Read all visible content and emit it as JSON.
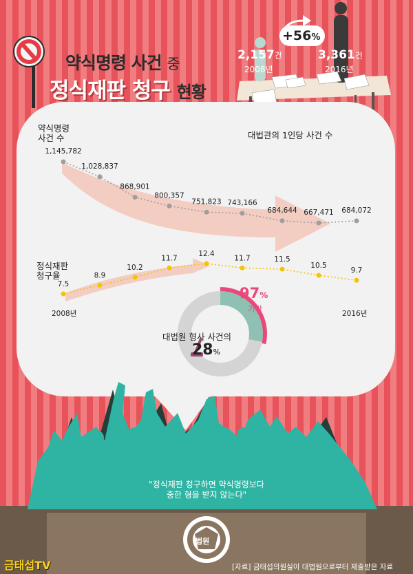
{
  "title": {
    "line1_main": "약식명령 사건",
    "line1_suffix": "중",
    "line2_main": "정식재판 청구",
    "line2_suffix": "현황"
  },
  "judges": {
    "caption": "대법관의 1인당 사건 수",
    "increase": "+56",
    "increase_unit": "%",
    "y2008_value": "2,157",
    "y2008_unit": "건",
    "y2008_label": "2008년",
    "y2016_value": "3,361",
    "y2016_unit": "건",
    "y2016_label": "2016년"
  },
  "summary_cases": {
    "label_line1": "약식명령",
    "label_line2": "사건 수",
    "values": [
      "1,145,782",
      "1,028,837",
      "868,901",
      "800,357",
      "751,823",
      "743,166",
      "684,644",
      "667,471",
      "684,072"
    ]
  },
  "trial_rate": {
    "label_line1": "정식재판",
    "label_line2": "청구율",
    "values": [
      "7.5",
      "8.9",
      "10.2",
      "11.7",
      "12.4",
      "11.7",
      "11.5",
      "10.5",
      "9.7"
    ],
    "start_year": "2008년",
    "end_year": "2016년"
  },
  "supreme_court": {
    "caption": "대법원 형사 사건의",
    "share": "28",
    "share_unit": "%",
    "dismiss_pct": "97",
    "dismiss_unit": "%",
    "dismiss_label": "기각",
    "share_fraction": 0.28,
    "dismiss_fraction": 0.97
  },
  "quote": {
    "line1": "\"정식재판 청구하면 약식명령보다",
    "line2": "중한 형을 받지 않는다\""
  },
  "emblem_text": "법원",
  "logo_text": "금태섭TV",
  "source": "[자료] 금태섭의원실이 대법원으로부터 제출받은 자료",
  "chart_data": [
    {
      "type": "line",
      "ylabel": "약식명령 사건 수",
      "x": [
        "2008",
        "2009",
        "2010",
        "2011",
        "2012",
        "2013",
        "2014",
        "2015",
        "2016"
      ],
      "values": [
        1145782,
        1028837,
        868901,
        800357,
        751823,
        743166,
        684644,
        667471,
        684072
      ]
    },
    {
      "type": "line",
      "ylabel": "정식재판 청구율",
      "x": [
        "2008",
        "2009",
        "2010",
        "2011",
        "2012",
        "2013",
        "2014",
        "2015",
        "2016"
      ],
      "values": [
        7.5,
        8.9,
        10.2,
        11.7,
        12.4,
        11.7,
        11.5,
        10.5,
        9.7
      ]
    }
  ],
  "colors": {
    "stripe_dark": "#e8525a",
    "stripe_light": "#f07d80",
    "bubble": "#f2f2f2",
    "crowd": "#2fb3a3",
    "accent_pink": "#e8497a",
    "dot_gray": "#9e9e9e",
    "dot_yellow": "#f4c400",
    "desk": "#6b5a4a"
  }
}
